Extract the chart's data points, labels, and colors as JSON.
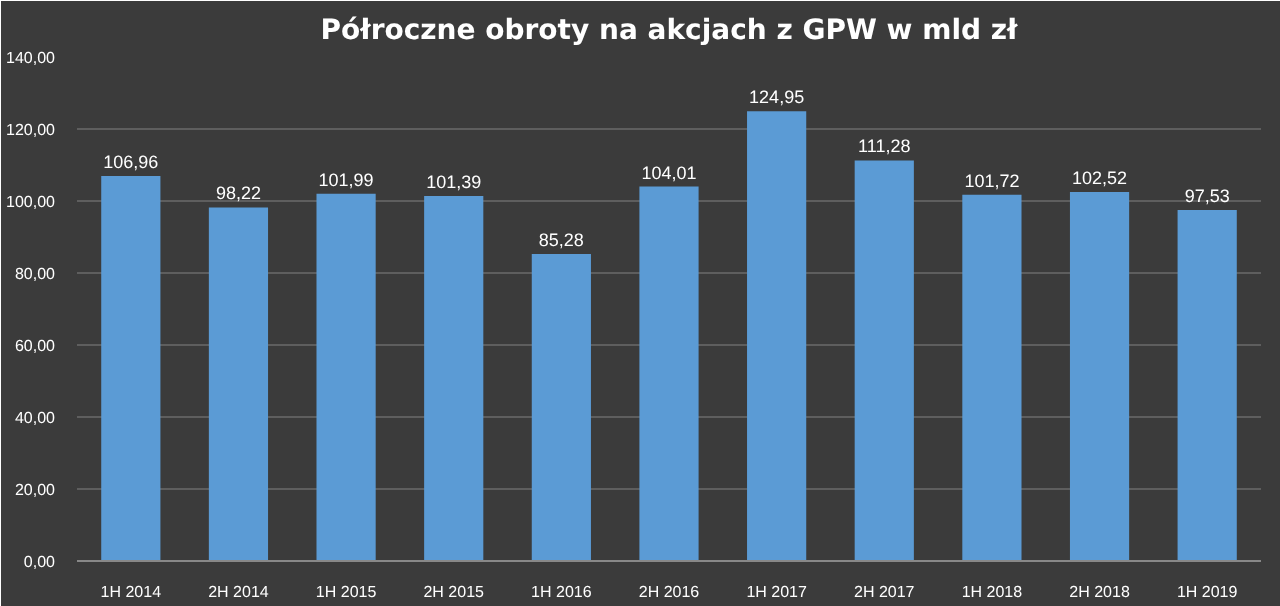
{
  "chart_data": {
    "type": "bar",
    "title": "Półroczne obroty na akcjach z GPW w mld zł",
    "categories": [
      "1H 2014",
      "2H 2014",
      "1H 2015",
      "2H 2015",
      "1H 2016",
      "2H 2016",
      "1H 2017",
      "2H 2017",
      "1H 2018",
      "2H 2018",
      "1H 2019"
    ],
    "values": [
      106.96,
      98.22,
      101.99,
      101.39,
      85.28,
      104.01,
      124.95,
      111.28,
      101.72,
      102.52,
      97.53
    ],
    "value_labels": [
      "106,96",
      "98,22",
      "101,99",
      "101,39",
      "85,28",
      "104,01",
      "124,95",
      "111,28",
      "101,72",
      "102,52",
      "97,53"
    ],
    "color": "#5b9bd5",
    "ylim": [
      0,
      140
    ],
    "yticks": [
      {
        "value": 0,
        "label": "0,00"
      },
      {
        "value": 20,
        "label": "20,00"
      },
      {
        "value": 40,
        "label": "40,00"
      },
      {
        "value": 60,
        "label": "60,00"
      },
      {
        "value": 80,
        "label": "80,00"
      },
      {
        "value": 100,
        "label": "100,00"
      },
      {
        "value": 120,
        "label": "120,00"
      },
      {
        "value": 140,
        "label": "140,00"
      }
    ],
    "grid": "y"
  }
}
